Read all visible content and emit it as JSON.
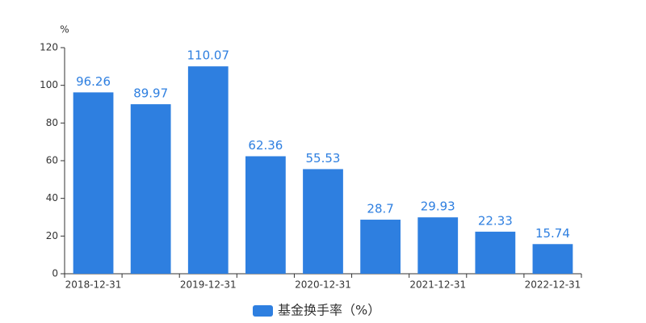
{
  "chart_data": {
    "type": "bar",
    "y_unit": "%",
    "categories": [
      "2018-12-31",
      null,
      "2019-12-31",
      null,
      "2020-12-31",
      null,
      "2021-12-31",
      null,
      "2022-12-31"
    ],
    "series": [
      {
        "name": "基金换手率（%）",
        "color": "#2e7fe0",
        "values": [
          96.26,
          89.97,
          110.07,
          62.36,
          55.53,
          28.7,
          29.93,
          22.33,
          15.74
        ]
      }
    ],
    "ylim": [
      0,
      120
    ],
    "yticks": [
      0,
      20,
      40,
      60,
      80,
      100,
      120
    ],
    "grid": false,
    "legend": "bottom"
  }
}
